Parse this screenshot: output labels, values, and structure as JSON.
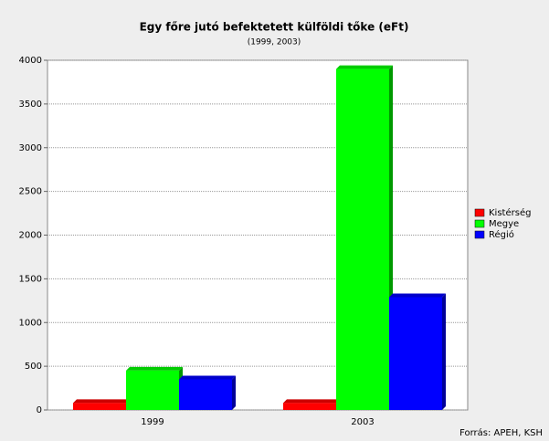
{
  "chart_data": {
    "type": "bar",
    "title": "Egy főre jutó befektetett külföldi tőke (eFt)",
    "subtitle": "(1999, 2003)",
    "categories": [
      "1999",
      "2003"
    ],
    "series": [
      {
        "name": "Kistérség",
        "color": "#ff0000",
        "values": [
          80,
          80
        ]
      },
      {
        "name": "Megye",
        "color": "#00ff00",
        "values": [
          450,
          3900
        ]
      },
      {
        "name": "Régió",
        "color": "#0000ff",
        "values": [
          350,
          1290
        ]
      }
    ],
    "ylim": [
      0,
      4000
    ],
    "yticks": [
      0,
      500,
      1000,
      1500,
      2000,
      2500,
      3000,
      3500,
      4000
    ],
    "grid": true,
    "legend": "right",
    "source": "Forrás: APEH, KSH"
  }
}
